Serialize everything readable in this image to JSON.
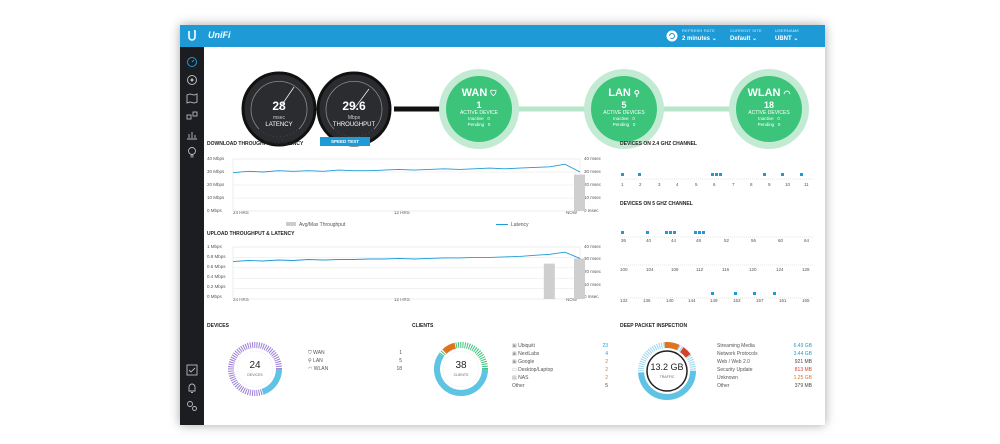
{
  "header": {
    "app_name": "UniFi",
    "refresh_rate_label": "REFRESH RATE",
    "refresh_rate_value": "2 minutes",
    "current_site_label": "CURRENT SITE",
    "current_site_value": "Default",
    "username_label": "USERNAME",
    "username_value": "UBNT"
  },
  "sidebar": {
    "items": [
      "dashboard-icon",
      "statistics-icon",
      "map-icon",
      "devices-icon",
      "insights-icon",
      "idea-icon"
    ],
    "bottom": [
      "tasks-icon",
      "alerts-icon",
      "settings-icon"
    ]
  },
  "gauges": {
    "latency": {
      "value": "28",
      "unit": "msec",
      "label": "LATENCY"
    },
    "throughput": {
      "value": "29.6",
      "unit": "Mbps",
      "label": "THROUGHPUT"
    },
    "speed_test": "SPEED TEST"
  },
  "nodes": {
    "wan": {
      "title": "WAN",
      "count": "1",
      "active": "ACTIVE DEVICE",
      "inactive_label": "Inactive",
      "inactive": "0",
      "pending_label": "Pending",
      "pending": "0"
    },
    "lan": {
      "title": "LAN",
      "count": "5",
      "active": "ACTIVE DEVICES",
      "inactive_label": "Inactive",
      "inactive": "0",
      "pending_label": "Pending",
      "pending": "0"
    },
    "wlan": {
      "title": "WLAN",
      "count": "18",
      "active": "ACTIVE DEVICES",
      "inactive_label": "Inactive",
      "inactive": "0",
      "pending_label": "Pending",
      "pending": "0"
    }
  },
  "download": {
    "title": "DOWNLOAD THROUGHPUT & LATENCY",
    "y_left": [
      "40 Mbps",
      "30 Mbps",
      "20 Mbps",
      "10 Mbps",
      "0 Mbps"
    ],
    "y_right": [
      "40 msec",
      "30 msec",
      "20 msec",
      "10 msec",
      "0 msec"
    ],
    "x": [
      "24 HRS",
      "12 HRS",
      "NOW"
    ],
    "legend_throughput": "Avg/Max Throughput",
    "legend_latency": "Latency"
  },
  "upload": {
    "title": "UPLOAD THROUGHPUT & LATENCY",
    "y_left": [
      "1 Mbps",
      "0.8 Mbps",
      "0.6 Mbps",
      "0.4 Mbps",
      "0.2 Mbps",
      "0 Mbps"
    ],
    "y_right": [
      "40 msec",
      "30 msec",
      "20 msec",
      "10 msec",
      "0 msec"
    ],
    "x": [
      "24 HRS",
      "12 HRS",
      "NOW"
    ]
  },
  "chart_data": [
    {
      "type": "line",
      "title": "DOWNLOAD THROUGHPUT & LATENCY",
      "ylim": [
        0,
        40
      ],
      "series": [
        {
          "name": "Latency",
          "values": [
            29.5,
            30.5,
            30,
            31,
            30.5,
            31,
            30.5,
            31.5,
            31,
            31,
            31.5,
            32,
            31.5,
            32,
            32.5,
            32,
            32.5,
            33,
            32.5,
            33,
            33.5,
            34,
            36,
            30
          ]
        },
        {
          "name": "Avg/Max Throughput",
          "values": [
            0,
            0,
            0,
            0,
            0,
            0,
            0,
            0,
            0,
            0,
            0,
            0,
            0,
            0,
            0,
            0,
            0,
            0,
            0,
            0,
            0,
            0,
            0,
            28
          ]
        }
      ]
    },
    {
      "type": "line",
      "title": "UPLOAD THROUGHPUT & LATENCY",
      "ylim": [
        0,
        1
      ],
      "series": [
        {
          "name": "Latency",
          "values": [
            0.72,
            0.74,
            0.73,
            0.75,
            0.74,
            0.76,
            0.75,
            0.76,
            0.76,
            0.77,
            0.77,
            0.78,
            0.77,
            0.78,
            0.79,
            0.79,
            0.8,
            0.8,
            0.81,
            0.82,
            0.84,
            0.86,
            0.9,
            0.78
          ]
        },
        {
          "name": "Avg/Max Throughput",
          "values": [
            0,
            0,
            0,
            0,
            0,
            0,
            0,
            0,
            0,
            0,
            0,
            0,
            0,
            0,
            0,
            0,
            0,
            0,
            0,
            0,
            0,
            0.68,
            0,
            0.78
          ]
        }
      ]
    }
  ],
  "channels24": {
    "title": "DEVICES ON 2.4 GHZ CHANNEL",
    "labels": [
      "1",
      "2",
      "3",
      "4",
      "5",
      "6",
      "7",
      "8",
      "9",
      "10",
      "11"
    ]
  },
  "channels5": {
    "title": "DEVICES ON 5 GHZ CHANNEL",
    "row1": [
      "36",
      "40",
      "44",
      "48",
      "52",
      "56",
      "60",
      "64"
    ],
    "row2": [
      "100",
      "104",
      "108",
      "112",
      "116",
      "120",
      "124",
      "128"
    ],
    "row3": [
      "132",
      "136",
      "140",
      "144",
      "149",
      "153",
      "157",
      "161",
      "165"
    ]
  },
  "devices": {
    "title": "DEVICES",
    "total": "24",
    "total_label": "DEVICES",
    "rows": [
      {
        "name": "WAN",
        "count": "1"
      },
      {
        "name": "LAN",
        "count": "5"
      },
      {
        "name": "WLAN",
        "count": "18"
      }
    ]
  },
  "clients": {
    "title": "CLIENTS",
    "total": "38",
    "total_label": "CLIENTS",
    "rows": [
      {
        "name": "Ubiquiti",
        "count": "23",
        "color": "#1e9bd7"
      },
      {
        "name": "NextLabs",
        "count": "4",
        "color": "#1e9bd7"
      },
      {
        "name": "Google",
        "count": "2",
        "color": "#e0741e"
      },
      {
        "name": "Desktop/Laptop",
        "count": "2",
        "color": "#e0741e"
      },
      {
        "name": "NAS",
        "count": "2",
        "color": "#e0741e"
      },
      {
        "name": "Other",
        "count": "5",
        "color": "#444444"
      }
    ]
  },
  "dpi": {
    "title": "DEEP PACKET INSPECTION",
    "total": "13.2 GB",
    "total_label": "TRAFFIC",
    "rows": [
      {
        "name": "Streaming Media",
        "value": "6.49 GB",
        "color": "#1e9bd7"
      },
      {
        "name": "Network Protocols",
        "value": "3.44 GB",
        "color": "#1e9bd7"
      },
      {
        "name": "Web / Web 2.0",
        "value": "921 MB",
        "color": "#444444"
      },
      {
        "name": "Security Update",
        "value": "813 MB",
        "color": "#d2452a"
      },
      {
        "name": "Unknown",
        "value": "1.25 GB",
        "color": "#e0741e"
      },
      {
        "name": "Other",
        "value": "379 MB",
        "color": "#444444"
      }
    ]
  },
  "colors": {
    "accent": "#1e9bd7",
    "green": "#3bc47a",
    "dark": "#1b1d21"
  }
}
